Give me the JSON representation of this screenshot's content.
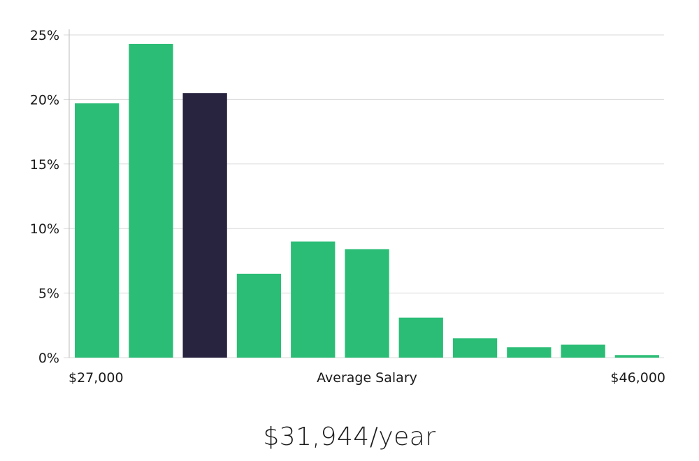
{
  "chart_data": {
    "type": "bar",
    "values": [
      19.7,
      24.3,
      20.5,
      6.5,
      9.0,
      8.4,
      3.1,
      1.5,
      0.8,
      1.0,
      0.2
    ],
    "highlight_index": 2,
    "colors": {
      "bar": "#2bbd76",
      "highlight": "#28233f",
      "grid": "#d9d9d9",
      "axis": "#bbbbbb"
    },
    "ylim": [
      0,
      25
    ],
    "yticks": [
      0,
      5,
      10,
      15,
      20,
      25
    ],
    "ytick_suffix": "%",
    "grid": true,
    "xlabel": "Average Salary",
    "x_min_label": "$27,000",
    "x_max_label": "$46,000"
  },
  "summary": {
    "salary_text": "$31,944/year"
  }
}
